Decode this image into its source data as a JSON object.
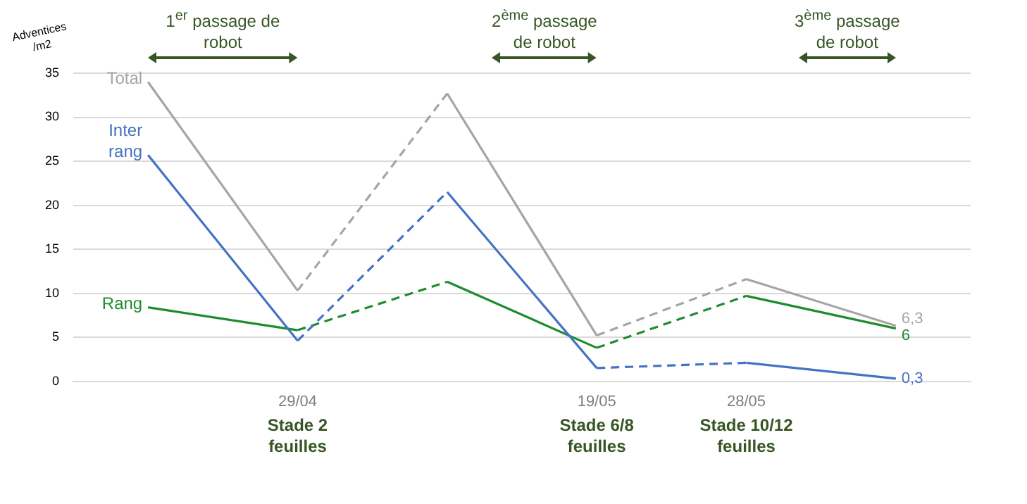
{
  "chart_data": {
    "type": "line",
    "ylabel": "Adventices /m2",
    "categories": [
      null,
      "29/04",
      null,
      "19/05",
      "28/05",
      null
    ],
    "ylim": [
      0,
      35
    ],
    "yticks": [
      0,
      5,
      10,
      15,
      20,
      25,
      30,
      35
    ],
    "grid": "y",
    "series": [
      {
        "name": "Total",
        "color": "#a5a5a5",
        "line_style": "solid",
        "values": [
          34,
          10.3,
          null,
          null,
          null,
          null
        ]
      },
      {
        "color": "#a5a5a5",
        "line_style": "dashed",
        "values": [
          null,
          10.3,
          32.7,
          null,
          null,
          null
        ]
      },
      {
        "color": "#a5a5a5",
        "line_style": "solid",
        "values": [
          null,
          null,
          32.7,
          5.2,
          null,
          null
        ]
      },
      {
        "color": "#a5a5a5",
        "line_style": "dashed",
        "values": [
          null,
          null,
          null,
          5.2,
          11.6,
          null
        ]
      },
      {
        "color": "#a5a5a5",
        "line_style": "solid",
        "values": [
          null,
          null,
          null,
          null,
          11.6,
          6.3
        ],
        "value_labels": [
          null,
          null,
          null,
          null,
          null,
          "6,3"
        ]
      },
      {
        "name": "Inter rang",
        "color": "#4472c4",
        "line_style": "solid",
        "values": [
          25.7,
          4.6,
          null,
          null,
          null,
          null
        ]
      },
      {
        "color": "#4472c4",
        "line_style": "dashed",
        "values": [
          null,
          4.6,
          21.5,
          null,
          null,
          null
        ]
      },
      {
        "color": "#4472c4",
        "line_style": "solid",
        "values": [
          null,
          null,
          21.5,
          1.5,
          null,
          null
        ]
      },
      {
        "color": "#4472c4",
        "line_style": "dashed",
        "values": [
          null,
          null,
          null,
          1.5,
          2.1,
          null
        ]
      },
      {
        "color": "#4472c4",
        "line_style": "solid",
        "values": [
          null,
          null,
          null,
          null,
          2.1,
          0.3
        ],
        "value_labels": [
          null,
          null,
          null,
          null,
          null,
          "0,3"
        ]
      },
      {
        "name": "Rang",
        "color": "#1e8c2e",
        "line_style": "solid",
        "values": [
          8.4,
          5.8,
          null,
          null,
          null,
          null
        ]
      },
      {
        "color": "#1e8c2e",
        "line_style": "dashed",
        "values": [
          null,
          5.8,
          11.3,
          null,
          null,
          null
        ]
      },
      {
        "color": "#1e8c2e",
        "line_style": "solid",
        "values": [
          null,
          null,
          11.3,
          3.8,
          null,
          null
        ]
      },
      {
        "color": "#1e8c2e",
        "line_style": "dashed",
        "values": [
          null,
          null,
          null,
          3.8,
          9.7,
          null
        ]
      },
      {
        "color": "#1e8c2e",
        "line_style": "solid",
        "values": [
          null,
          null,
          null,
          null,
          9.7,
          6
        ],
        "value_labels": [
          null,
          null,
          null,
          null,
          null,
          "6"
        ]
      }
    ],
    "annotations": [
      "1$^{er}$ passage de robot",
      "2$^{ème}$ passage de robot",
      "3$^{ème}$ passage de robot",
      "Stade 2 feuilles",
      "Stade 6/8 feuilles",
      "Stade 10/12 feuilles"
    ]
  }
}
